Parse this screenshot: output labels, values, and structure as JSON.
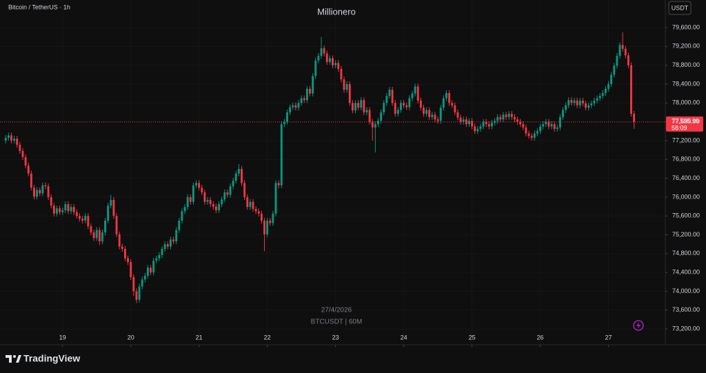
{
  "chart_data": {
    "type": "candlestick",
    "title": "Millionero",
    "symbol_label": "Bitcoin / TetherUS · 1h",
    "currency": "USDT",
    "up_color": "#089981",
    "down_color": "#f23645",
    "xlim": [
      -22,
      212
    ],
    "xticks": [
      {
        "value": 0,
        "label": "19"
      },
      {
        "value": 24,
        "label": "20"
      },
      {
        "value": 48,
        "label": "21"
      },
      {
        "value": 72,
        "label": "22"
      },
      {
        "value": 96,
        "label": "23"
      },
      {
        "value": 120,
        "label": "24"
      },
      {
        "value": 144,
        "label": "25"
      },
      {
        "value": 168,
        "label": "26"
      },
      {
        "value": 192,
        "label": "27"
      }
    ],
    "ylim": [
      72865,
      80186
    ],
    "yticks": [
      {
        "value": 73200,
        "label": "73,200.00"
      },
      {
        "value": 73600,
        "label": "73,600.00"
      },
      {
        "value": 74000,
        "label": "74,000.00"
      },
      {
        "value": 74400,
        "label": "74,400.00"
      },
      {
        "value": 74800,
        "label": "74,800.00"
      },
      {
        "value": 75200,
        "label": "75,200.00"
      },
      {
        "value": 75600,
        "label": "75,600.00"
      },
      {
        "value": 76000,
        "label": "76,000.00"
      },
      {
        "value": 76400,
        "label": "76,400.00"
      },
      {
        "value": 76800,
        "label": "76,800.00"
      },
      {
        "value": 77200,
        "label": "77,200.00"
      },
      {
        "value": 77600,
        "label": "77,600.00"
      },
      {
        "value": 78000,
        "label": "78,000.00"
      },
      {
        "value": 78400,
        "label": "78,400.00"
      },
      {
        "value": 78800,
        "label": "78,800.00"
      },
      {
        "value": 79200,
        "label": "79,200.00"
      },
      {
        "value": 79600,
        "label": "79,600.00"
      }
    ],
    "last_price": {
      "value": 77595.99,
      "label": "77,595.99"
    },
    "countdown": "58:09",
    "watermark": {
      "date": "27/4/2026",
      "symbol": "BTCUSDT | 60M"
    },
    "brand": "TradingView",
    "x": [
      -20,
      -19,
      -18,
      -17,
      -16,
      -15,
      -14,
      -13,
      -12,
      -11,
      -10,
      -9,
      -8,
      -7,
      -6,
      -5,
      -4,
      -3,
      -2,
      -1,
      0,
      1,
      2,
      3,
      4,
      5,
      6,
      7,
      8,
      9,
      10,
      11,
      12,
      13,
      14,
      15,
      16,
      17,
      18,
      19,
      20,
      21,
      22,
      23,
      24,
      25,
      26,
      27,
      28,
      29,
      30,
      31,
      32,
      33,
      34,
      35,
      36,
      37,
      38,
      39,
      40,
      41,
      42,
      43,
      44,
      45,
      46,
      47,
      48,
      49,
      50,
      51,
      52,
      53,
      54,
      55,
      56,
      57,
      58,
      59,
      60,
      61,
      62,
      63,
      64,
      65,
      66,
      67,
      68,
      69,
      70,
      71,
      72,
      73,
      74,
      75,
      76,
      77,
      78,
      79,
      80,
      81,
      82,
      83,
      84,
      85,
      86,
      87,
      88,
      89,
      90,
      91,
      92,
      93,
      94,
      95,
      96,
      97,
      98,
      99,
      100,
      101,
      102,
      103,
      104,
      105,
      106,
      107,
      108,
      109,
      110,
      111,
      112,
      113,
      114,
      115,
      116,
      117,
      118,
      119,
      120,
      121,
      122,
      123,
      124,
      125,
      126,
      127,
      128,
      129,
      130,
      131,
      132,
      133,
      134,
      135,
      136,
      137,
      138,
      139,
      140,
      141,
      142,
      143,
      144,
      145,
      146,
      147,
      148,
      149,
      150,
      151,
      152,
      153,
      154,
      155,
      156,
      157,
      158,
      159,
      160,
      161,
      162,
      163,
      164,
      165,
      166,
      167,
      168,
      169,
      170,
      171,
      172,
      173,
      174,
      175,
      176,
      177,
      178,
      179,
      180,
      181,
      182,
      183,
      184,
      185,
      186,
      187,
      188,
      189,
      190,
      191,
      192,
      193,
      194,
      195,
      196,
      197,
      198,
      199,
      200,
      201
    ],
    "open": [
      77200,
      77260,
      77310,
      77200,
      77240,
      77110,
      76980,
      76850,
      76670,
      76500,
      76200,
      76010,
      76150,
      76080,
      76250,
      76230,
      76000,
      75820,
      75650,
      75760,
      75680,
      75720,
      75850,
      75700,
      75790,
      75680,
      75600,
      75540,
      75500,
      75600,
      75380,
      75250,
      75130,
      75300,
      75060,
      75250,
      75500,
      75820,
      75940,
      75600,
      75210,
      74950,
      74900,
      74700,
      74620,
      74300,
      74000,
      73820,
      74100,
      74250,
      74330,
      74500,
      74400,
      74650,
      74700,
      74770,
      74900,
      75000,
      74950,
      75100,
      75060,
      75300,
      75500,
      75700,
      75790,
      76000,
      75900,
      76250,
      76300,
      76200,
      76100,
      75900,
      75940,
      75850,
      75800,
      75720,
      75850,
      75950,
      76100,
      76050,
      76230,
      76350,
      76500,
      76600,
      76300,
      76000,
      75790,
      75900,
      75750,
      75700,
      75650,
      75500,
      75210,
      75500,
      75450,
      75650,
      76300,
      76250,
      77550,
      77600,
      77800,
      77910,
      77950,
      77900,
      78000,
      78100,
      78060,
      78300,
      78200,
      78570,
      78900,
      79000,
      79160,
      79050,
      78870,
      78950,
      78800,
      78850,
      78720,
      78500,
      78280,
      78400,
      78000,
      77840,
      78000,
      77900,
      78060,
      77800,
      77850,
      77600,
      77480,
      77550,
      77620,
      77800,
      78000,
      78150,
      78280,
      78000,
      77770,
      77850,
      78000,
      77950,
      77910,
      78100,
      78200,
      78350,
      78050,
      77900,
      77770,
      77850,
      77700,
      77750,
      77650,
      77620,
      77900,
      78100,
      78210,
      78000,
      77950,
      77800,
      77690,
      77600,
      77650,
      77550,
      77620,
      77500,
      77400,
      77450,
      77500,
      77600,
      77550,
      77500,
      77580,
      77620,
      77700,
      77650,
      77750,
      77700,
      77770,
      77700,
      77650,
      77600,
      77550,
      77480,
      77350,
      77300,
      77260,
      77350,
      77400,
      77500,
      77550,
      77600,
      77500,
      77550,
      77450,
      77480,
      77700,
      77850,
      77950,
      78060,
      78000,
      78050,
      77950,
      78050,
      77990,
      77900,
      77950,
      77990,
      78050,
      78100,
      78150,
      78210,
      78300,
      78400,
      78600,
      78790,
      79000,
      79230,
      79150,
      79010,
      78800,
      77770
    ],
    "high": [
      77320,
      77370,
      77370,
      77300,
      77300,
      77170,
      77040,
      76910,
      76730,
      76560,
      76260,
      76210,
      76210,
      76310,
      76310,
      76290,
      76060,
      75880,
      75820,
      75820,
      75780,
      75910,
      75910,
      75850,
      75850,
      75740,
      75660,
      75600,
      75660,
      75660,
      75440,
      75310,
      75360,
      75360,
      75310,
      75560,
      75880,
      76050,
      76000,
      75660,
      75270,
      75010,
      74960,
      74760,
      74680,
      74360,
      74060,
      74160,
      74310,
      74390,
      74560,
      74560,
      74710,
      74760,
      74830,
      74960,
      75060,
      75060,
      75160,
      75160,
      75360,
      75560,
      75760,
      75850,
      76060,
      76060,
      76310,
      76360,
      76360,
      76260,
      76160,
      76000,
      76000,
      75910,
      75860,
      75910,
      76010,
      76160,
      76160,
      76290,
      76410,
      76560,
      76700,
      76660,
      76360,
      76060,
      75960,
      75960,
      75810,
      75760,
      75710,
      75560,
      75560,
      75560,
      75710,
      76360,
      76360,
      77610,
      77660,
      77860,
      77970,
      78010,
      78010,
      78060,
      78160,
      78160,
      78360,
      78360,
      78630,
      78960,
      79060,
      79400,
      79220,
      79110,
      79010,
      79010,
      78910,
      78910,
      78780,
      78560,
      78460,
      78460,
      78060,
      78060,
      78060,
      78120,
      78120,
      77910,
      77910,
      77660,
      77610,
      77680,
      77860,
      78060,
      78210,
      78340,
      78340,
      78060,
      77910,
      78060,
      78060,
      78010,
      78160,
      78260,
      78410,
      78410,
      78110,
      77960,
      77910,
      77910,
      77810,
      77810,
      77710,
      77960,
      78160,
      78270,
      78270,
      78060,
      78010,
      77860,
      77750,
      77710,
      77710,
      77680,
      77680,
      77560,
      77510,
      77560,
      77660,
      77660,
      77610,
      77640,
      77680,
      77760,
      77760,
      77810,
      77810,
      77830,
      77830,
      77760,
      77710,
      77660,
      77610,
      77540,
      77410,
      77360,
      77410,
      77460,
      77560,
      77610,
      77660,
      77660,
      77610,
      77610,
      77540,
      77760,
      77910,
      78010,
      78120,
      78120,
      78110,
      78110,
      78110,
      78110,
      78050,
      78010,
      78050,
      78110,
      78160,
      78210,
      78270,
      78360,
      78460,
      78660,
      78850,
      79060,
      79290,
      79500,
      79210,
      79070,
      78860,
      77830
    ],
    "low": [
      77140,
      77200,
      77140,
      77140,
      77050,
      76920,
      76790,
      76610,
      76440,
      76140,
      75950,
      75950,
      76020,
      76020,
      76170,
      75940,
      75760,
      75590,
      75590,
      75620,
      75620,
      75660,
      75640,
      75640,
      75620,
      75540,
      75480,
      75440,
      75440,
      75320,
      75190,
      75070,
      75070,
      74980,
      75000,
      75190,
      75440,
      75760,
      75540,
      75150,
      74890,
      74840,
      74640,
      74560,
      74240,
      73900,
      73750,
      73760,
      74040,
      74190,
      74270,
      74340,
      74340,
      74590,
      74640,
      74710,
      74840,
      74890,
      74890,
      75000,
      75000,
      75240,
      75440,
      75640,
      75730,
      75840,
      75840,
      76190,
      76140,
      76040,
      75840,
      75840,
      75790,
      75740,
      75660,
      75660,
      75790,
      75890,
      75990,
      75990,
      76170,
      76290,
      76440,
      76240,
      75940,
      75730,
      75730,
      75690,
      75640,
      75590,
      75440,
      74850,
      75150,
      75390,
      75390,
      75590,
      76190,
      76190,
      77490,
      77540,
      77740,
      77850,
      77840,
      77840,
      77940,
      78000,
      78000,
      78140,
      78140,
      78510,
      78840,
      78940,
      78990,
      78810,
      78810,
      78740,
      78740,
      78660,
      78440,
      78220,
      78220,
      77940,
      77780,
      77780,
      77840,
      77840,
      77740,
      77740,
      77540,
      77200,
      76950,
      77490,
      77560,
      77740,
      77940,
      78090,
      77940,
      77710,
      77710,
      77790,
      77890,
      77850,
      77850,
      78040,
      78140,
      77990,
      77840,
      77710,
      77710,
      77640,
      77640,
      77590,
      77560,
      77560,
      77840,
      78040,
      77940,
      77890,
      77740,
      77630,
      77540,
      77540,
      77490,
      77490,
      77440,
      77340,
      77340,
      77390,
      77440,
      77490,
      77440,
      77440,
      77520,
      77560,
      77590,
      77590,
      77640,
      77640,
      77640,
      77590,
      77540,
      77490,
      77420,
      77290,
      77240,
      77200,
      77200,
      77290,
      77340,
      77440,
      77490,
      77440,
      77440,
      77390,
      77390,
      77420,
      77640,
      77790,
      77890,
      77940,
      77940,
      77890,
      77890,
      77930,
      77840,
      77840,
      77890,
      77930,
      77990,
      78040,
      78090,
      78150,
      78240,
      78340,
      78540,
      78730,
      78940,
      79090,
      78950,
      78740,
      77710,
      77450
    ],
    "close": [
      77260,
      77310,
      77200,
      77240,
      77110,
      76980,
      76850,
      76670,
      76500,
      76200,
      76010,
      76150,
      76080,
      76250,
      76230,
      76000,
      75820,
      75650,
      75760,
      75680,
      75720,
      75850,
      75700,
      75790,
      75680,
      75600,
      75540,
      75500,
      75600,
      75380,
      75250,
      75130,
      75300,
      75060,
      75250,
      75500,
      75820,
      75940,
      75600,
      75210,
      74950,
      74900,
      74700,
      74620,
      74300,
      74000,
      73820,
      74100,
      74250,
      74330,
      74500,
      74400,
      74650,
      74700,
      74770,
      74900,
      75000,
      74950,
      75100,
      75060,
      75300,
      75500,
      75700,
      75790,
      76000,
      75900,
      76250,
      76300,
      76200,
      76100,
      75900,
      75940,
      75850,
      75800,
      75720,
      75850,
      75950,
      76100,
      76050,
      76230,
      76350,
      76500,
      76600,
      76300,
      76000,
      75790,
      75900,
      75750,
      75700,
      75650,
      75500,
      75210,
      75500,
      75450,
      75650,
      76300,
      76250,
      77550,
      77600,
      77800,
      77910,
      77950,
      77900,
      78000,
      78100,
      78060,
      78300,
      78200,
      78570,
      78900,
      79000,
      79160,
      79050,
      78870,
      78950,
      78800,
      78850,
      78720,
      78500,
      78280,
      78400,
      78000,
      77840,
      78000,
      77900,
      78060,
      77800,
      77850,
      77600,
      77480,
      77550,
      77620,
      77800,
      78000,
      78150,
      78280,
      78000,
      77770,
      77850,
      78000,
      77950,
      77910,
      78100,
      78200,
      78350,
      78050,
      77900,
      77770,
      77850,
      77700,
      77750,
      77650,
      77620,
      77900,
      78100,
      78210,
      78000,
      77950,
      77800,
      77690,
      77600,
      77650,
      77550,
      77620,
      77500,
      77400,
      77450,
      77500,
      77600,
      77550,
      77500,
      77580,
      77620,
      77700,
      77650,
      77750,
      77700,
      77770,
      77700,
      77650,
      77600,
      77550,
      77480,
      77350,
      77300,
      77260,
      77350,
      77400,
      77500,
      77550,
      77600,
      77500,
      77550,
      77450,
      77480,
      77700,
      77850,
      77950,
      78060,
      78000,
      78050,
      77950,
      78050,
      77990,
      77900,
      77950,
      77990,
      78050,
      78100,
      78150,
      78210,
      78300,
      78400,
      78600,
      78790,
      79000,
      79230,
      79150,
      79010,
      78800,
      77770,
      77595.99
    ]
  }
}
